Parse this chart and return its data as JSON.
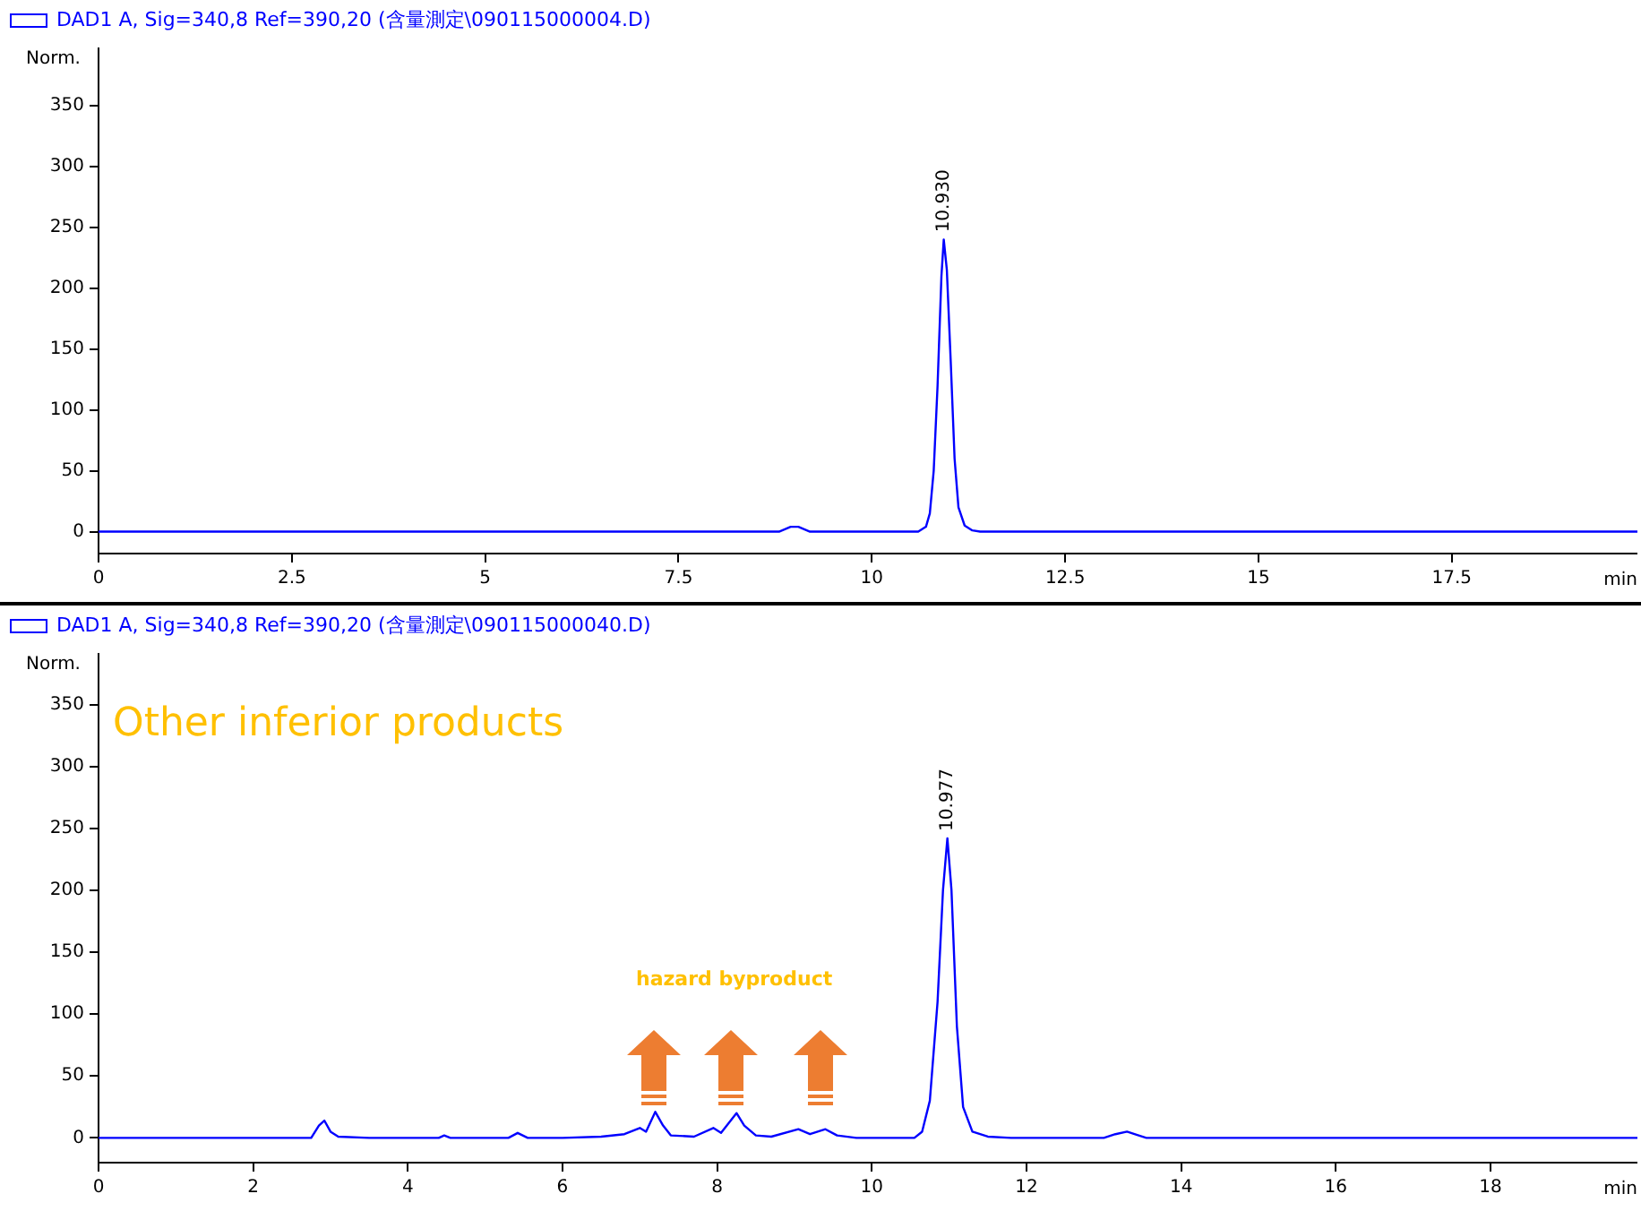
{
  "chart_data": [
    {
      "type": "line",
      "ylabel": "Norm.",
      "xlabel": "min",
      "xlim": [
        0,
        19.9
      ],
      "xticks": [
        0,
        2.5,
        5,
        7.5,
        10,
        12.5,
        15,
        17.5
      ],
      "ylim": [
        -18,
        397
      ],
      "yticks": [
        0,
        50,
        100,
        150,
        200,
        250,
        300,
        350
      ],
      "legend": "top left",
      "grid": false,
      "marker": "none",
      "line_style": "solid",
      "series": [
        {
          "name": "DAD1 A, Sig=340,8 Ref=390,20 (含量測定\\090115000004.D)",
          "color": "#0000ff",
          "x": [
            0,
            8.8,
            8.95,
            9.05,
            9.2,
            10.6,
            10.7,
            10.75,
            10.8,
            10.85,
            10.9,
            10.93,
            10.97,
            11.02,
            11.07,
            11.12,
            11.2,
            11.3,
            11.4,
            19.9
          ],
          "values": [
            0,
            0,
            4,
            4,
            0,
            0,
            4,
            15,
            50,
            120,
            210,
            240,
            215,
            140,
            60,
            20,
            5,
            1,
            0,
            0
          ]
        }
      ],
      "annotations": [
        {
          "text": "10.930",
          "x": 10.93,
          "y": 240
        }
      ]
    },
    {
      "type": "line",
      "ylabel": "Norm.",
      "xlabel": "min",
      "xlim": [
        0,
        19.9
      ],
      "xticks": [
        0,
        2,
        4,
        6,
        8,
        10,
        12,
        14,
        16,
        18
      ],
      "ylim": [
        -20,
        391
      ],
      "yticks": [
        0,
        50,
        100,
        150,
        200,
        250,
        300,
        350
      ],
      "legend": "top left",
      "grid": false,
      "marker": "none",
      "line_style": "solid",
      "series": [
        {
          "name": "DAD1 A, Sig=340,8 Ref=390,20 (含量測定\\090115000040.D)",
          "color": "#0000ff",
          "x": [
            0,
            2.75,
            2.85,
            2.92,
            3.0,
            3.1,
            3.5,
            4.4,
            4.47,
            4.55,
            5.3,
            5.42,
            5.55,
            6.0,
            6.5,
            6.8,
            7.0,
            7.08,
            7.2,
            7.3,
            7.4,
            7.7,
            7.95,
            8.05,
            8.25,
            8.35,
            8.5,
            8.7,
            9.05,
            9.2,
            9.4,
            9.55,
            9.8,
            10.55,
            10.65,
            10.75,
            10.85,
            10.92,
            10.977,
            11.03,
            11.1,
            11.18,
            11.3,
            11.5,
            11.8,
            13.0,
            13.15,
            13.3,
            13.45,
            13.55,
            19.9
          ],
          "values": [
            0,
            0,
            10,
            14,
            5,
            1,
            0,
            0,
            2,
            0,
            0,
            4,
            0,
            0,
            1,
            3,
            8,
            5,
            21,
            10,
            2,
            1,
            8,
            4,
            20,
            10,
            2,
            1,
            7,
            3,
            7,
            2,
            0,
            0,
            5,
            30,
            110,
            200,
            242,
            200,
            90,
            25,
            5,
            1,
            0,
            0,
            3,
            5,
            2,
            0,
            0
          ]
        }
      ],
      "annotations": [
        "Other inferior products",
        "hazard byproduct",
        {
          "text": "10.977",
          "x": 10.977,
          "y": 242
        }
      ]
    }
  ]
}
